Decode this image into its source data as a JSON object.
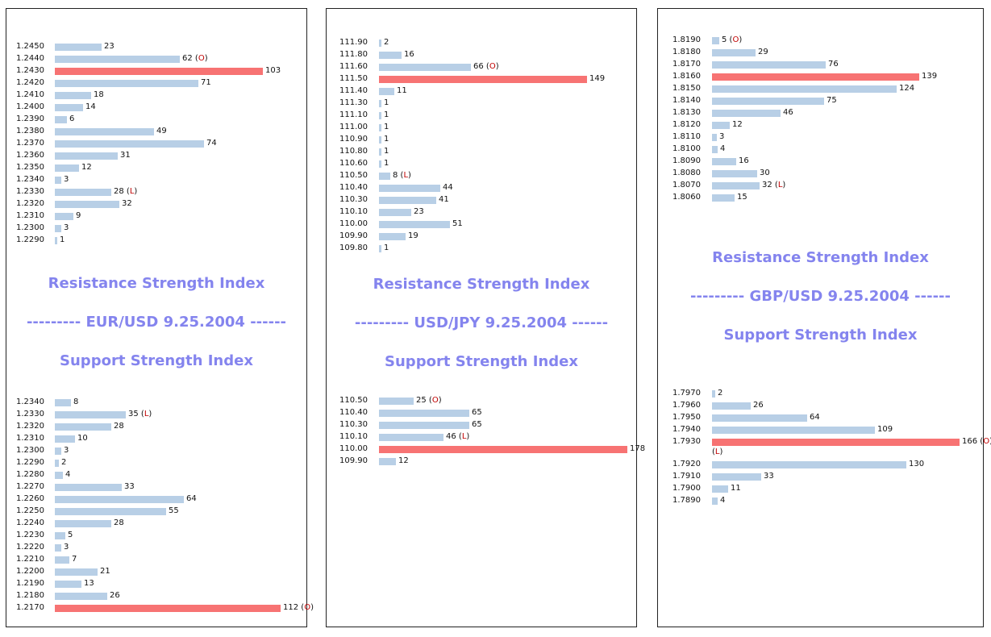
{
  "panels": [
    {
      "id": "eur",
      "title_line": "--------- EUR/USD 9.25.2004 ------",
      "resistance_heading": "Resistance Strength Index",
      "support_heading": "Support Strength Index",
      "resistance": [
        {
          "level": "1.2450",
          "value": 23,
          "tag": ""
        },
        {
          "level": "1.2440",
          "value": 62,
          "tag": "O"
        },
        {
          "level": "1.2430",
          "value": 103,
          "tag": "",
          "highlight": true
        },
        {
          "level": "1.2420",
          "value": 71,
          "tag": ""
        },
        {
          "level": "1.2410",
          "value": 18,
          "tag": ""
        },
        {
          "level": "1.2400",
          "value": 14,
          "tag": ""
        },
        {
          "level": "1.2390",
          "value": 6,
          "tag": ""
        },
        {
          "level": "1.2380",
          "value": 49,
          "tag": ""
        },
        {
          "level": "1.2370",
          "value": 74,
          "tag": ""
        },
        {
          "level": "1.2360",
          "value": 31,
          "tag": ""
        },
        {
          "level": "1.2350",
          "value": 12,
          "tag": ""
        },
        {
          "level": "1.2340",
          "value": 3,
          "tag": ""
        },
        {
          "level": "1.2330",
          "value": 28,
          "tag": "L"
        },
        {
          "level": "1.2320",
          "value": 32,
          "tag": ""
        },
        {
          "level": "1.2310",
          "value": 9,
          "tag": ""
        },
        {
          "level": "1.2300",
          "value": 3,
          "tag": ""
        },
        {
          "level": "1.2290",
          "value": 1,
          "tag": ""
        }
      ],
      "support": [
        {
          "level": "1.2340",
          "value": 8,
          "tag": ""
        },
        {
          "level": "1.2330",
          "value": 35,
          "tag": "L"
        },
        {
          "level": "1.2320",
          "value": 28,
          "tag": ""
        },
        {
          "level": "1.2310",
          "value": 10,
          "tag": ""
        },
        {
          "level": "1.2300",
          "value": 3,
          "tag": ""
        },
        {
          "level": "1.2290",
          "value": 2,
          "tag": ""
        },
        {
          "level": "1.2280",
          "value": 4,
          "tag": ""
        },
        {
          "level": "1.2270",
          "value": 33,
          "tag": ""
        },
        {
          "level": "1.2260",
          "value": 64,
          "tag": ""
        },
        {
          "level": "1.2250",
          "value": 55,
          "tag": ""
        },
        {
          "level": "1.2240",
          "value": 28,
          "tag": ""
        },
        {
          "level": "1.2230",
          "value": 5,
          "tag": ""
        },
        {
          "level": "1.2220",
          "value": 3,
          "tag": ""
        },
        {
          "level": "1.2210",
          "value": 7,
          "tag": ""
        },
        {
          "level": "1.2200",
          "value": 21,
          "tag": ""
        },
        {
          "level": "1.2190",
          "value": 13,
          "tag": ""
        },
        {
          "level": "1.2180",
          "value": 26,
          "tag": ""
        },
        {
          "level": "1.2170",
          "value": 112,
          "tag": "O",
          "highlight": true
        }
      ]
    },
    {
      "id": "jpy",
      "title_line": "--------- USD/JPY 9.25.2004 ------",
      "resistance_heading": "Resistance Strength Index",
      "support_heading": "Support Strength Index",
      "resistance": [
        {
          "level": "111.90",
          "value": 2,
          "tag": ""
        },
        {
          "level": "111.80",
          "value": 16,
          "tag": ""
        },
        {
          "level": "111.60",
          "value": 66,
          "tag": "O"
        },
        {
          "level": "111.50",
          "value": 149,
          "tag": "",
          "highlight": true
        },
        {
          "level": "111.40",
          "value": 11,
          "tag": ""
        },
        {
          "level": "111.30",
          "value": 1,
          "tag": ""
        },
        {
          "level": "111.10",
          "value": 1,
          "tag": ""
        },
        {
          "level": "111.00",
          "value": 1,
          "tag": ""
        },
        {
          "level": "110.90",
          "value": 1,
          "tag": ""
        },
        {
          "level": "110.80",
          "value": 1,
          "tag": ""
        },
        {
          "level": "110.60",
          "value": 1,
          "tag": ""
        },
        {
          "level": "110.50",
          "value": 8,
          "tag": "L"
        },
        {
          "level": "110.40",
          "value": 44,
          "tag": ""
        },
        {
          "level": "110.30",
          "value": 41,
          "tag": ""
        },
        {
          "level": "110.10",
          "value": 23,
          "tag": ""
        },
        {
          "level": "110.00",
          "value": 51,
          "tag": ""
        },
        {
          "level": "109.90",
          "value": 19,
          "tag": ""
        },
        {
          "level": "109.80",
          "value": 1,
          "tag": ""
        }
      ],
      "support": [
        {
          "level": "110.50",
          "value": 25,
          "tag": "O"
        },
        {
          "level": "110.40",
          "value": 65,
          "tag": ""
        },
        {
          "level": "110.30",
          "value": 65,
          "tag": ""
        },
        {
          "level": "110.10",
          "value": 46,
          "tag": "L"
        },
        {
          "level": "110.00",
          "value": 178,
          "tag": "",
          "highlight": true
        },
        {
          "level": "109.90",
          "value": 12,
          "tag": ""
        }
      ]
    },
    {
      "id": "gbp",
      "title_line": "--------- GBP/USD 9.25.2004 ------",
      "resistance_heading": "Resistance Strength Index",
      "support_heading": "Support Strength Index",
      "resistance": [
        {
          "level": "1.8190",
          "value": 5,
          "tag": "O"
        },
        {
          "level": "1.8180",
          "value": 29,
          "tag": ""
        },
        {
          "level": "1.8170",
          "value": 76,
          "tag": ""
        },
        {
          "level": "1.8160",
          "value": 139,
          "tag": "",
          "highlight": true
        },
        {
          "level": "1.8150",
          "value": 124,
          "tag": ""
        },
        {
          "level": "1.8140",
          "value": 75,
          "tag": ""
        },
        {
          "level": "1.8130",
          "value": 46,
          "tag": ""
        },
        {
          "level": "1.8120",
          "value": 12,
          "tag": ""
        },
        {
          "level": "1.8110",
          "value": 3,
          "tag": ""
        },
        {
          "level": "1.8100",
          "value": 4,
          "tag": ""
        },
        {
          "level": "1.8090",
          "value": 16,
          "tag": ""
        },
        {
          "level": "1.8080",
          "value": 30,
          "tag": ""
        },
        {
          "level": "1.8070",
          "value": 32,
          "tag": "L"
        },
        {
          "level": "1.8060",
          "value": 15,
          "tag": ""
        }
      ],
      "support": [
        {
          "level": "1.7970",
          "value": 2,
          "tag": ""
        },
        {
          "level": "1.7960",
          "value": 26,
          "tag": ""
        },
        {
          "level": "1.7950",
          "value": 64,
          "tag": ""
        },
        {
          "level": "1.7940",
          "value": 109,
          "tag": ""
        },
        {
          "level": "1.7930",
          "value": 166,
          "tag": "O",
          "extra_tag": "L",
          "highlight": true
        },
        {
          "level": "1.7920",
          "value": 130,
          "tag": ""
        },
        {
          "level": "1.7910",
          "value": 33,
          "tag": ""
        },
        {
          "level": "1.7900",
          "value": 11,
          "tag": ""
        },
        {
          "level": "1.7890",
          "value": 4,
          "tag": ""
        }
      ]
    }
  ],
  "colors": {
    "bar": "#b8cfe6",
    "highlight_bar": "#f77373",
    "heading": "#8484ee",
    "tag": "#c00000"
  },
  "chart_data": [
    {
      "type": "bar",
      "orientation": "horizontal",
      "title": "Resistance Strength Index - EUR/USD 9.25.2004",
      "categories": [
        "1.2450",
        "1.2440",
        "1.2430",
        "1.2420",
        "1.2410",
        "1.2400",
        "1.2390",
        "1.2380",
        "1.2370",
        "1.2360",
        "1.2350",
        "1.2340",
        "1.2330",
        "1.2320",
        "1.2310",
        "1.2300",
        "1.2290"
      ],
      "values": [
        23,
        62,
        103,
        71,
        18,
        14,
        6,
        49,
        74,
        31,
        12,
        3,
        28,
        32,
        9,
        3,
        1
      ]
    },
    {
      "type": "bar",
      "orientation": "horizontal",
      "title": "Support Strength Index - EUR/USD 9.25.2004",
      "categories": [
        "1.2340",
        "1.2330",
        "1.2320",
        "1.2310",
        "1.2300",
        "1.2290",
        "1.2280",
        "1.2270",
        "1.2260",
        "1.2250",
        "1.2240",
        "1.2230",
        "1.2220",
        "1.2210",
        "1.2200",
        "1.2190",
        "1.2180",
        "1.2170"
      ],
      "values": [
        8,
        35,
        28,
        10,
        3,
        2,
        4,
        33,
        64,
        55,
        28,
        5,
        3,
        7,
        21,
        13,
        26,
        112
      ]
    },
    {
      "type": "bar",
      "orientation": "horizontal",
      "title": "Resistance Strength Index - USD/JPY 9.25.2004",
      "categories": [
        "111.90",
        "111.80",
        "111.60",
        "111.50",
        "111.40",
        "111.30",
        "111.10",
        "111.00",
        "110.90",
        "110.80",
        "110.60",
        "110.50",
        "110.40",
        "110.30",
        "110.10",
        "110.00",
        "109.90",
        "109.80"
      ],
      "values": [
        2,
        16,
        66,
        149,
        11,
        1,
        1,
        1,
        1,
        1,
        1,
        8,
        44,
        41,
        23,
        51,
        19,
        1
      ]
    },
    {
      "type": "bar",
      "orientation": "horizontal",
      "title": "Support Strength Index - USD/JPY 9.25.2004",
      "categories": [
        "110.50",
        "110.40",
        "110.30",
        "110.10",
        "110.00",
        "109.90"
      ],
      "values": [
        25,
        65,
        65,
        46,
        178,
        12
      ]
    },
    {
      "type": "bar",
      "orientation": "horizontal",
      "title": "Resistance Strength Index - GBP/USD 9.25.2004",
      "categories": [
        "1.8190",
        "1.8180",
        "1.8170",
        "1.8160",
        "1.8150",
        "1.8140",
        "1.8130",
        "1.8120",
        "1.8110",
        "1.8100",
        "1.8090",
        "1.8080",
        "1.8070",
        "1.8060"
      ],
      "values": [
        5,
        29,
        76,
        139,
        124,
        75,
        46,
        12,
        3,
        4,
        16,
        30,
        32,
        15
      ]
    },
    {
      "type": "bar",
      "orientation": "horizontal",
      "title": "Support Strength Index - GBP/USD 9.25.2004",
      "categories": [
        "1.7970",
        "1.7960",
        "1.7950",
        "1.7940",
        "1.7930",
        "1.7920",
        "1.7910",
        "1.7900",
        "1.7890"
      ],
      "values": [
        2,
        26,
        64,
        109,
        166,
        130,
        33,
        11,
        4
      ]
    }
  ]
}
